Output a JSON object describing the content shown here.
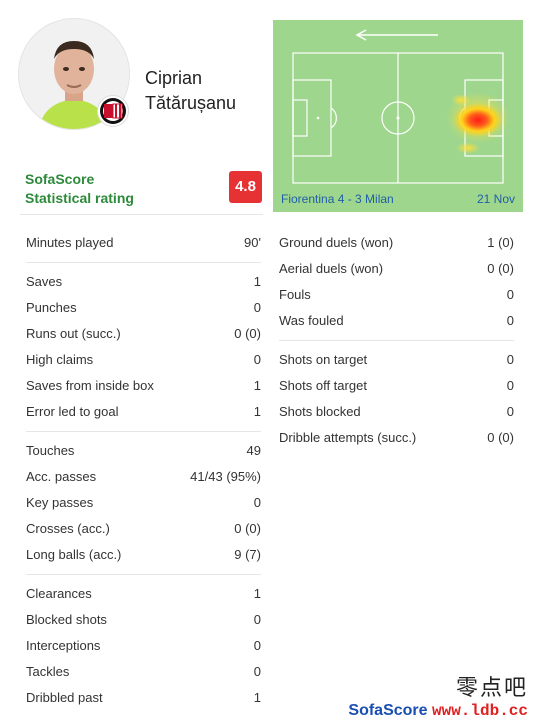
{
  "player": {
    "name_line1": "Ciprian",
    "name_line2": "Tătărușanu"
  },
  "rating": {
    "label_line1": "SofaScore",
    "label_line2": "Statistical rating",
    "value": "4.8",
    "color": "#e63232"
  },
  "match": {
    "caption": "Fiorentina 4 - 3 Milan",
    "date": "21 Nov",
    "attack_direction": "left"
  },
  "stats_left": [
    [
      {
        "label": "Minutes played",
        "value": "90'"
      }
    ],
    [
      {
        "label": "Saves",
        "value": "1"
      },
      {
        "label": "Punches",
        "value": "0"
      },
      {
        "label": "Runs out (succ.)",
        "value": "0 (0)"
      },
      {
        "label": "High claims",
        "value": "0"
      },
      {
        "label": "Saves from inside box",
        "value": "1"
      },
      {
        "label": "Error led to goal",
        "value": "1"
      }
    ],
    [
      {
        "label": "Touches",
        "value": "49"
      },
      {
        "label": "Acc. passes",
        "value": "41/43 (95%)"
      },
      {
        "label": "Key passes",
        "value": "0"
      },
      {
        "label": "Crosses (acc.)",
        "value": "0 (0)"
      },
      {
        "label": "Long balls (acc.)",
        "value": "9 (7)"
      }
    ],
    [
      {
        "label": "Clearances",
        "value": "1"
      },
      {
        "label": "Blocked shots",
        "value": "0"
      },
      {
        "label": "Interceptions",
        "value": "0"
      },
      {
        "label": "Tackles",
        "value": "0"
      },
      {
        "label": "Dribbled past",
        "value": "1"
      }
    ]
  ],
  "stats_right": [
    [
      {
        "label": "Ground duels (won)",
        "value": "1 (0)"
      },
      {
        "label": "Aerial duels (won)",
        "value": "0 (0)"
      },
      {
        "label": "Fouls",
        "value": "0"
      },
      {
        "label": "Was fouled",
        "value": "0"
      }
    ],
    [
      {
        "label": "Shots on target",
        "value": "0"
      },
      {
        "label": "Shots off target",
        "value": "0"
      },
      {
        "label": "Shots blocked",
        "value": "0"
      },
      {
        "label": "Dribble attempts (succ.)",
        "value": "0 (0)"
      }
    ]
  ],
  "watermark": {
    "top": "零点吧",
    "brand": "SofaScore",
    "url": "www.ldb.cc"
  },
  "colors": {
    "pitch": "#9fd68d",
    "brand_green": "#2d8a3a",
    "link_blue": "#1f5fa8"
  }
}
